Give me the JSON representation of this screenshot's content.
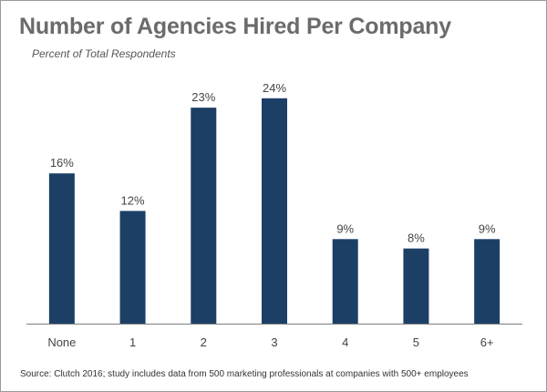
{
  "title": "Number of Agencies Hired Per Company",
  "subtitle": "Percent of Total Respondents",
  "source": "Source: Clutch 2016; study includes data from 500 marketing professionals at companies with 500+ employees",
  "colors": {
    "bar": "#1c3f66",
    "axis": "#7f7f7f",
    "label": "#444444",
    "title": "#6b6b6b"
  },
  "chart_data": {
    "type": "bar",
    "categories": [
      "None",
      "1",
      "2",
      "3",
      "4",
      "5",
      "6+"
    ],
    "values": [
      16,
      12,
      23,
      24,
      9,
      8,
      9
    ],
    "value_labels": [
      "16%",
      "12%",
      "23%",
      "24%",
      "9%",
      "8%",
      "9%"
    ],
    "title": "Number of Agencies Hired Per Company",
    "subtitle": "Percent of Total Respondents",
    "ylim": [
      0,
      24
    ],
    "grid": false,
    "legend": "none"
  }
}
